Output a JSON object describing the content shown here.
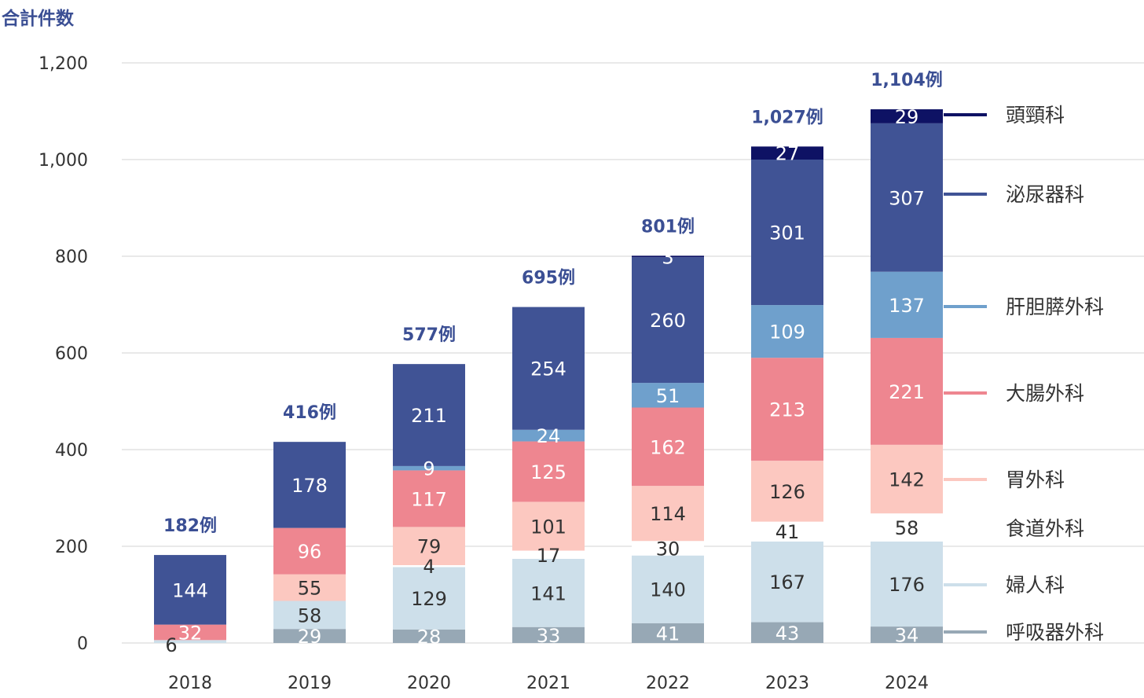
{
  "chart_data": {
    "type": "bar",
    "stacked": true,
    "ylabel": "合計件数",
    "ylim": [
      0,
      1200
    ],
    "yticks": [
      "0",
      "200",
      "400",
      "600",
      "800",
      "1,000",
      "1,200"
    ],
    "categories": [
      "2018",
      "2019",
      "2020",
      "2021",
      "2022",
      "2023",
      "2024"
    ],
    "totals": [
      "182例",
      "416例",
      "577例",
      "695例",
      "801例",
      "1,027例",
      "1,104例"
    ],
    "total_values": [
      182,
      416,
      577,
      695,
      801,
      1027,
      1104
    ],
    "grid": true,
    "legend_placement": "right",
    "series": [
      {
        "name": "呼吸器外科",
        "color": "#97a8b5",
        "text_color": "#ffffff",
        "values": [
          0,
          29,
          28,
          33,
          41,
          43,
          34
        ],
        "labels": [
          "",
          "29",
          "28",
          "33",
          "41",
          "43",
          "34"
        ]
      },
      {
        "name": "婦人科",
        "color": "#cddfea",
        "text_color": "#333333",
        "values": [
          6,
          58,
          129,
          141,
          140,
          167,
          176
        ],
        "labels": [
          "6",
          "58",
          "129",
          "141",
          "140",
          "167",
          "176"
        ]
      },
      {
        "name": "食道外科",
        "color": "#ffffff",
        "text_color": "#333333",
        "values": [
          0,
          0,
          4,
          17,
          30,
          41,
          58
        ],
        "labels": [
          "",
          "",
          "4",
          "17",
          "30",
          "41",
          "58"
        ]
      },
      {
        "name": "胃外科",
        "color": "#fcc8c0",
        "text_color": "#333333",
        "values": [
          0,
          55,
          79,
          101,
          114,
          126,
          142
        ],
        "labels": [
          "",
          "55",
          "79",
          "101",
          "114",
          "126",
          "142"
        ]
      },
      {
        "name": "大腸外科",
        "color": "#ee8690",
        "text_color": "#ffffff",
        "values": [
          32,
          96,
          117,
          125,
          162,
          213,
          221
        ],
        "labels": [
          "32",
          "96",
          "117",
          "125",
          "162",
          "213",
          "221"
        ]
      },
      {
        "name": "肝胆膵外科",
        "color": "#6fa0cc",
        "text_color": "#ffffff",
        "values": [
          0,
          0,
          9,
          24,
          51,
          109,
          137
        ],
        "labels": [
          "",
          "",
          "9",
          "24",
          "51",
          "109",
          "137"
        ]
      },
      {
        "name": "泌尿器科",
        "color": "#405395",
        "text_color": "#ffffff",
        "values": [
          144,
          178,
          211,
          254,
          260,
          301,
          307
        ],
        "labels": [
          "144",
          "178",
          "211",
          "254",
          "260",
          "301",
          "307"
        ]
      },
      {
        "name": "頭頸科",
        "color": "#0e1264",
        "text_color": "#ffffff",
        "values": [
          0,
          0,
          0,
          0,
          3,
          27,
          29
        ],
        "labels": [
          "",
          "",
          "",
          "",
          "3",
          "27",
          "29"
        ]
      }
    ]
  },
  "colors": {
    "total_label": "#3b4f94",
    "axis_text": "#333333",
    "grid": "#e2e2e2"
  }
}
